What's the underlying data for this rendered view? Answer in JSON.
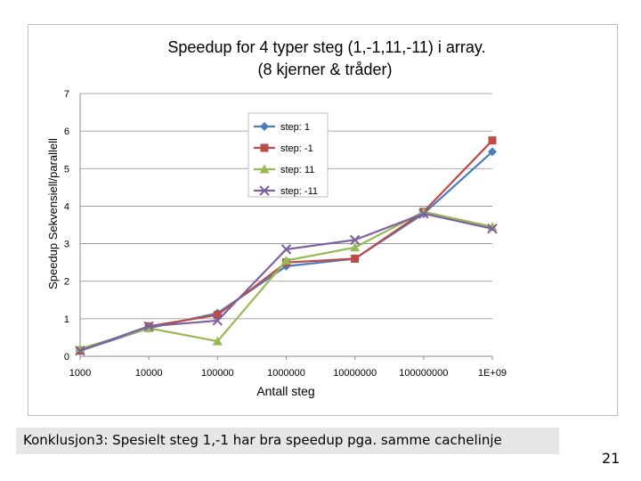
{
  "caption": "Konklusjon3: Spesielt steg 1,-1 har bra speedup pga. samme cachelinje",
  "page_number": "21",
  "chart_data": {
    "type": "line",
    "title_line1": "Speedup  for  4  typer  steg (1,-1,11,-11) i array.",
    "title_line2": "(8 kjerner & tråder)",
    "xlabel": "Antall steg",
    "ylabel": "Speedup Sekvensiell/parallell",
    "x_scale": "log",
    "xlim": [
      1000,
      1000000000
    ],
    "ylim": [
      0,
      7
    ],
    "grid": true,
    "legend_position": "top-right",
    "x_tick_labels": [
      "1000",
      "10000",
      "100000",
      "1000000",
      "10000000",
      "100000000",
      "1E+09"
    ],
    "y_tick_labels": [
      "0",
      "1",
      "2",
      "3",
      "4",
      "5",
      "6",
      "7"
    ],
    "x": [
      1000,
      10000,
      100000,
      1000000,
      10000000,
      100000000,
      1000000000
    ],
    "series": [
      {
        "name": "step: 1",
        "color": "#4a7ebb",
        "marker": "diamond",
        "values": [
          0.15,
          0.75,
          1.15,
          2.4,
          2.6,
          3.8,
          5.45
        ]
      },
      {
        "name": "step: -1",
        "color": "#be4b48",
        "marker": "square",
        "values": [
          0.15,
          0.8,
          1.1,
          2.5,
          2.6,
          3.85,
          5.75
        ]
      },
      {
        "name": "step:  11",
        "color": "#98b954",
        "marker": "triangle",
        "values": [
          0.2,
          0.75,
          0.4,
          2.55,
          2.9,
          3.85,
          3.45
        ]
      },
      {
        "name": "step: -11",
        "color": "#7d60a0",
        "marker": "x",
        "values": [
          0.15,
          0.8,
          0.95,
          2.85,
          3.1,
          3.8,
          3.4
        ]
      }
    ]
  }
}
